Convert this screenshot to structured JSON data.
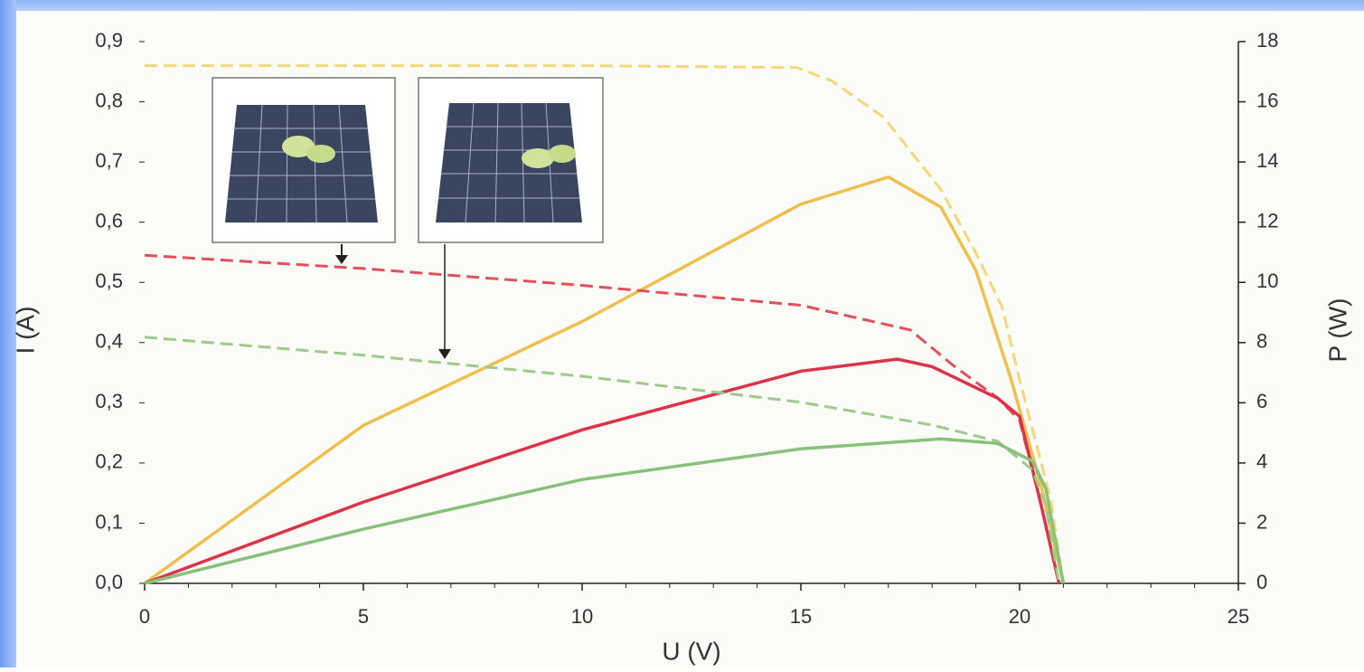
{
  "chart_data": {
    "type": "line",
    "xlabel": "U (V)",
    "ylabel": "I (A)",
    "y2label": "P (W)",
    "xlim": [
      0,
      25
    ],
    "xticks": [
      0,
      5,
      10,
      15,
      20,
      25
    ],
    "ylim": [
      0,
      0.9
    ],
    "yticks": [
      {
        "value": 0,
        "label": "0,0"
      },
      {
        "value": 0.1,
        "label": "0,1"
      },
      {
        "value": 0.2,
        "label": "0,2"
      },
      {
        "value": 0.3,
        "label": "0,3"
      },
      {
        "value": 0.4,
        "label": "0,4"
      },
      {
        "value": 0.5,
        "label": "0,5"
      },
      {
        "value": 0.6,
        "label": "0,6"
      },
      {
        "value": 0.7,
        "label": "0,7"
      },
      {
        "value": 0.8,
        "label": "0,8"
      },
      {
        "value": 0.9,
        "label": "0,9"
      }
    ],
    "y2lim": [
      0,
      18
    ],
    "y2ticks": [
      0,
      2,
      4,
      6,
      8,
      10,
      12,
      14,
      16,
      18
    ],
    "series": [
      {
        "color": "#f3d77a",
        "style": "dashed",
        "x": [
          0,
          5,
          10,
          14.9,
          15.7,
          16.9,
          18.2,
          19.0,
          19.6,
          20.0,
          20.7,
          21.0
        ],
        "values": [
          0.86,
          0.86,
          0.86,
          0.857,
          0.835,
          0.774,
          0.654,
          0.549,
          0.459,
          0.338,
          0.143,
          0
        ]
      },
      {
        "color": "#f0c04e",
        "style": "solid",
        "axis": "y2",
        "x": [
          0,
          5,
          10,
          15,
          17.0,
          18.2,
          19.0,
          19.8,
          20.5,
          21.0
        ],
        "values": [
          0,
          5.25,
          8.7,
          12.6,
          13.5,
          12.5,
          10.4,
          6.8,
          3.2,
          0
        ]
      },
      {
        "color": "#e2505c",
        "style": "dashed",
        "x": [
          0,
          5,
          10,
          15,
          17.5,
          18.5,
          19.5,
          20.0,
          20.5,
          20.9
        ],
        "values": [
          0.545,
          0.523,
          0.495,
          0.462,
          0.421,
          0.361,
          0.308,
          0.271,
          0.128,
          0
        ]
      },
      {
        "color": "#dc3348",
        "style": "solid",
        "axis": "y2",
        "x": [
          0,
          5,
          10,
          15,
          17.2,
          18.0,
          19.5,
          20.0,
          20.5,
          20.9
        ],
        "values": [
          0,
          2.7,
          5.1,
          7.05,
          7.45,
          7.2,
          6.15,
          5.55,
          2.55,
          0
        ]
      },
      {
        "color": "#9ccb8a",
        "style": "dashed",
        "x": [
          0,
          5,
          10,
          15,
          18.0,
          19.5,
          20.3,
          20.6,
          20.9
        ],
        "values": [
          0.409,
          0.379,
          0.344,
          0.301,
          0.263,
          0.236,
          0.188,
          0.128,
          0
        ]
      },
      {
        "color": "#86c27a",
        "style": "solid",
        "axis": "y2",
        "x": [
          0,
          5,
          10,
          15,
          18.2,
          19.5,
          20.3,
          20.6,
          21.0
        ],
        "values": [
          0,
          1.8,
          3.45,
          4.47,
          4.8,
          4.65,
          4.05,
          3.15,
          0
        ]
      }
    ]
  }
}
